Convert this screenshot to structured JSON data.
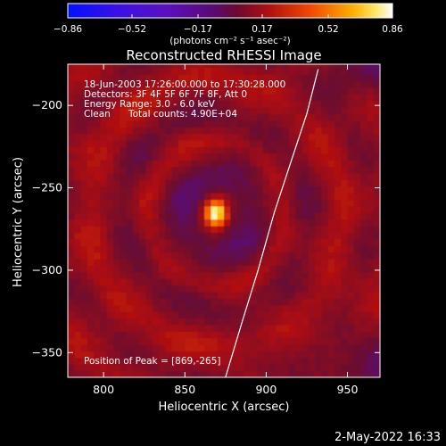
{
  "chart_data": {
    "type": "heatmap",
    "title": "Reconstructed RHESSI Image",
    "xlabel": "Heliocentric X (arcsec)",
    "ylabel": "Heliocentric Y (arcsec)",
    "xlim": [
      778,
      970
    ],
    "ylim": [
      -365,
      -175
    ],
    "x_ticks": [
      800,
      850,
      900,
      950
    ],
    "x_tick_labels": [
      "800",
      "850",
      "900",
      "950"
    ],
    "y_ticks": [
      -200,
      -250,
      -300,
      -350
    ],
    "y_tick_labels": [
      "−200",
      "−250",
      "−300",
      "−350"
    ],
    "colorbar": {
      "min": -0.86,
      "max": 0.86,
      "tick_values": [
        -0.86,
        -0.52,
        -0.17,
        0.17,
        0.52,
        0.86
      ],
      "tick_labels": [
        "−0.86",
        "−0.52",
        "−0.17",
        "0.17",
        "0.52",
        "0.86"
      ],
      "units_label": "(photons cm⁻² s⁻¹ asec⁻²)",
      "colormap": "blue-purple-red-orange-yellow-white"
    },
    "annotations": {
      "time_range": "18-Jun-2003 17:26:00.000 to 17:30:28.000",
      "detectors": "Detectors: 3F 4F 5F 6F 7F 8F, Att 0",
      "energy_range": "Energy Range: 3.0 - 6.0 keV",
      "clean": "Clean",
      "total_counts": "Total counts: 4.90E+04",
      "peak_position": "Position of Peak = [869,-265]"
    },
    "peak": {
      "x": 869,
      "y": -265
    },
    "limb_curve": [
      [
        875,
        -365
      ],
      [
        885,
        -332
      ],
      [
        895,
        -300
      ],
      [
        905,
        -265
      ],
      [
        915,
        -235
      ],
      [
        925,
        -205
      ],
      [
        932,
        -178
      ]
    ],
    "grid": false,
    "legend": "none"
  },
  "footer": {
    "date": "2-May-2022 16:33"
  }
}
